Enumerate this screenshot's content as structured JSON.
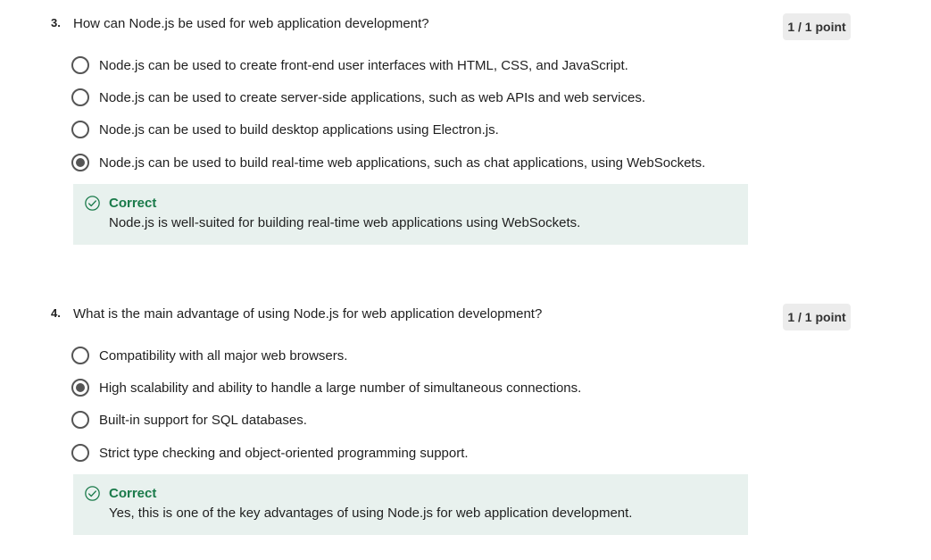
{
  "questions": [
    {
      "number": "3.",
      "text": "How can Node.js be used for web application development?",
      "points": "1 / 1 point",
      "options": [
        {
          "label": "Node.js can be used to create front-end user interfaces with HTML, CSS, and JavaScript.",
          "selected": false
        },
        {
          "label": "Node.js can be used to create server-side applications, such as web APIs and web services.",
          "selected": false
        },
        {
          "label": "Node.js can be used to build desktop applications using Electron.js.",
          "selected": false
        },
        {
          "label": "Node.js can be used to build real-time web applications, such as chat applications, using WebSockets.",
          "selected": true
        }
      ],
      "feedback": {
        "title": "Correct",
        "text": "Node.js is well-suited for building real-time web applications using WebSockets."
      }
    },
    {
      "number": "4.",
      "text": "What is the main advantage of using Node.js for web application development?",
      "points": "1 / 1 point",
      "options": [
        {
          "label": "Compatibility with all major web browsers.",
          "selected": false
        },
        {
          "label": "High scalability and ability to handle a large number of simultaneous connections.",
          "selected": true
        },
        {
          "label": "Built-in support for SQL databases.",
          "selected": false
        },
        {
          "label": "Strict type checking and object-oriented programming support.",
          "selected": false
        }
      ],
      "feedback": {
        "title": "Correct",
        "text": "Yes, this is one of the key advantages of using Node.js for web application development."
      }
    }
  ],
  "colors": {
    "correct_green": "#1a7a4a",
    "feedback_bg": "#e8f1ee",
    "points_bg": "#ececec"
  },
  "icons": {
    "feedback": "check-circle-icon",
    "option": "radio-button-icon"
  }
}
